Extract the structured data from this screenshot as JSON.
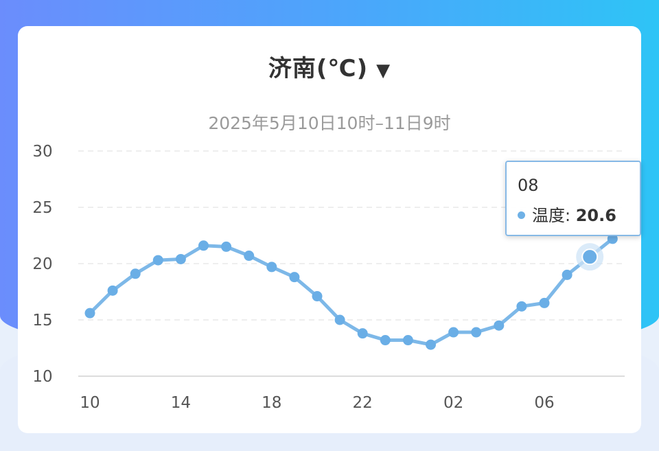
{
  "header": {
    "city_title": "济南(℃)",
    "dropdown_arrow": "▼",
    "subtitle": "2025年5月10日10时–11日9时"
  },
  "tooltip": {
    "x_label": "08",
    "series_name": "温度",
    "separator": ": ",
    "value": "20.6"
  },
  "colors": {
    "line": "#7db8e8",
    "point": "#6aaee6",
    "grid": "#e3e3e3",
    "axis": "#dcdcdc",
    "tick_text": "#555555"
  },
  "chart_data": {
    "type": "line",
    "title": "济南(℃)",
    "subtitle": "2025年5月10日10时–11日9时",
    "x": [
      "10",
      "11",
      "12",
      "13",
      "14",
      "15",
      "16",
      "17",
      "18",
      "19",
      "20",
      "21",
      "22",
      "23",
      "00",
      "01",
      "02",
      "03",
      "04",
      "05",
      "06",
      "07",
      "08",
      "09"
    ],
    "x_tick_labels": [
      "10",
      "14",
      "18",
      "22",
      "02",
      "06"
    ],
    "y_ticks": [
      10,
      15,
      20,
      25,
      30
    ],
    "ylim": [
      10,
      30
    ],
    "grid": "horizontal-dashed",
    "series": [
      {
        "name": "温度",
        "values": [
          15.6,
          17.6,
          19.1,
          20.3,
          20.4,
          21.6,
          21.5,
          20.7,
          19.7,
          18.8,
          17.1,
          15.0,
          13.8,
          13.2,
          13.2,
          12.8,
          13.9,
          13.9,
          14.5,
          16.2,
          16.5,
          19.0,
          20.6,
          22.2
        ]
      }
    ],
    "highlighted_point": {
      "x": "08",
      "value": 20.6
    }
  }
}
